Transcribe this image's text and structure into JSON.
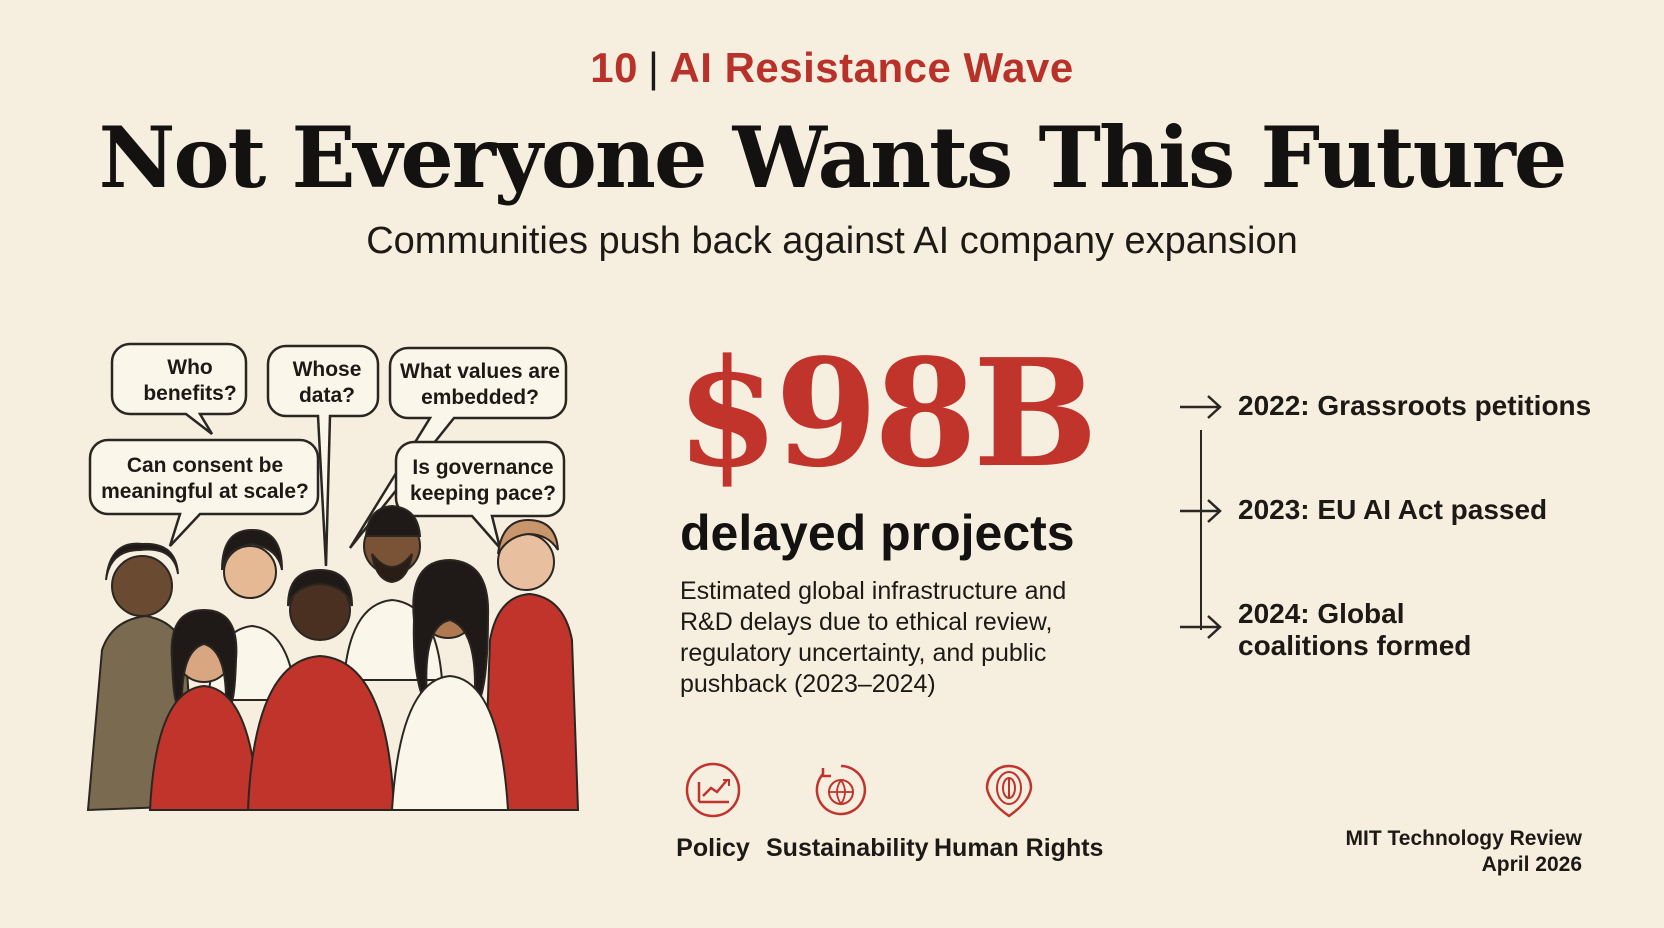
{
  "header": {
    "number": "10",
    "section": "AI Resistance Wave",
    "title": "Not Everyone Wants This Future",
    "subtitle": "Communities push back against AI company expansion"
  },
  "illustration": {
    "bubbles": [
      "Who benefits?",
      "Whose data?",
      "What values are embedded?",
      "Can consent be meaningful at scale?",
      "Is governance keeping pace?"
    ]
  },
  "stat": {
    "value": "$98B",
    "label": "delayed projects",
    "description": "Estimated global infrastructure and R&D delays due to ethical review, regulatory uncertainty, and public pushback (2023–2024)"
  },
  "tags": [
    {
      "label": "Policy",
      "icon": "policy-chart-icon"
    },
    {
      "label": "Sustainability",
      "icon": "sustainability-globe-icon"
    },
    {
      "label": "Human Rights",
      "icon": "human-rights-fingerprint-icon"
    }
  ],
  "timeline": [
    {
      "text": "2022: Grassroots petitions"
    },
    {
      "text": "2023: EU AI Act passed"
    },
    {
      "text": "2024: Global coalitions formed"
    }
  ],
  "credit": {
    "publication": "MIT Technology Review",
    "date": "April 2026"
  },
  "colors": {
    "accent": "#c0342c",
    "background": "#f6efe0",
    "text": "#1d1a16"
  }
}
